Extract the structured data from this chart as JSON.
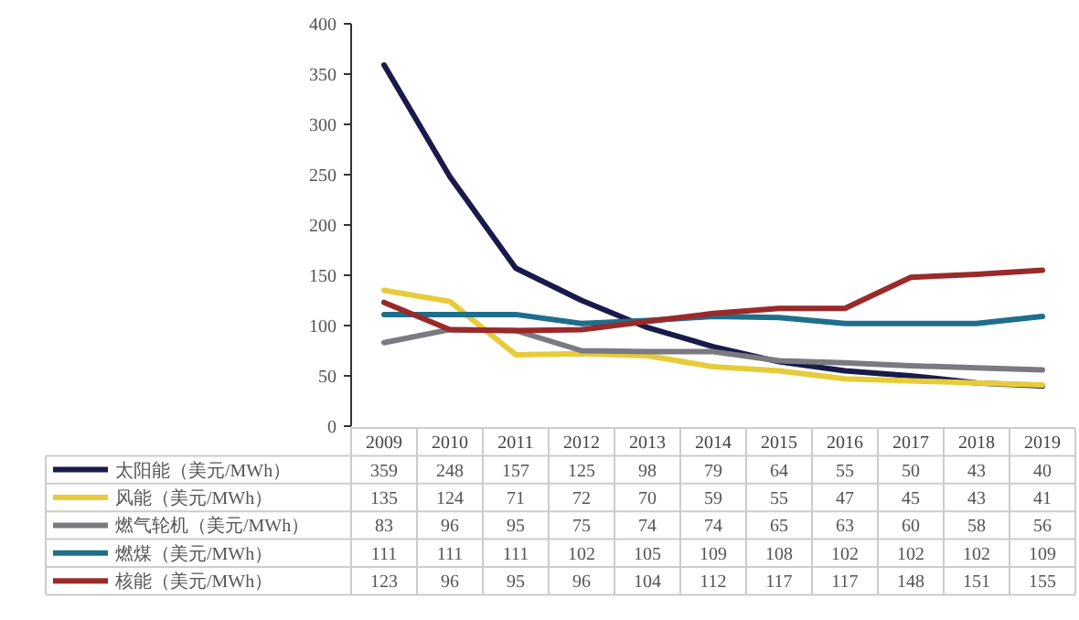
{
  "chart_data": {
    "type": "line",
    "categories": [
      "2009",
      "2010",
      "2011",
      "2012",
      "2013",
      "2014",
      "2015",
      "2016",
      "2017",
      "2018",
      "2019"
    ],
    "ylim": [
      0,
      400
    ],
    "yticks": [
      0,
      50,
      100,
      150,
      200,
      250,
      300,
      350,
      400
    ],
    "grid": false,
    "legend": "bottom",
    "data_labels": true,
    "series": [
      {
        "name": "太阳能（美元/MWh）",
        "color": "#1a1a4a",
        "values": [
          359,
          248,
          157,
          125,
          98,
          79,
          64,
          55,
          50,
          43,
          40
        ]
      },
      {
        "name": "风能（美元/MWh）",
        "color": "#e6cc3a",
        "values": [
          135,
          124,
          71,
          72,
          70,
          59,
          55,
          47,
          45,
          43,
          41
        ]
      },
      {
        "name": "燃气轮机（美元/MWh）",
        "color": "#7a7a80",
        "values": [
          83,
          96,
          95,
          75,
          74,
          74,
          65,
          63,
          60,
          58,
          56
        ]
      },
      {
        "name": "燃煤（美元/MWh）",
        "color": "#1f6e8c",
        "values": [
          111,
          111,
          111,
          102,
          105,
          109,
          108,
          102,
          102,
          102,
          109
        ]
      },
      {
        "name": "核能（美元/MWh）",
        "color": "#9a2a2a",
        "values": [
          123,
          96,
          95,
          96,
          104,
          112,
          117,
          117,
          148,
          151,
          155
        ]
      }
    ]
  }
}
